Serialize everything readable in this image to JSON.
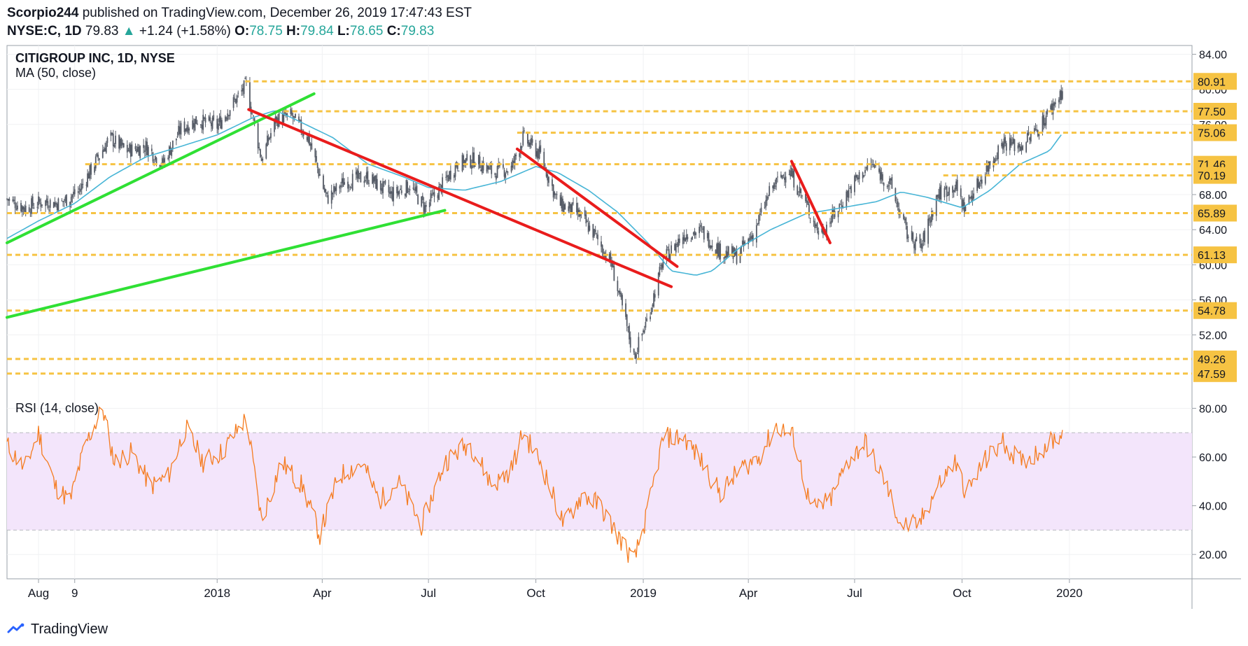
{
  "header": {
    "publisher": "Scorpio244",
    "published_text": "published on TradingView.com, December 26, 2019 17:47:43 EST",
    "symbol": "NYSE:C, 1D",
    "last": "79.83",
    "change": "+1.24 (+1.58%)",
    "o_label": "O:",
    "o_value": "78.75",
    "h_label": "H:",
    "h_value": "79.84",
    "l_label": "L:",
    "l_value": "78.65",
    "c_label": "C:",
    "c_value": "79.83"
  },
  "footer": {
    "brand": "TradingView"
  },
  "colors": {
    "ma": "#47b5d6",
    "support": "#f6c343",
    "trend_green": "#2fe034",
    "trend_red": "#e91c1c",
    "rsi": "#f57c20",
    "rsi_band": "#f3e5fb",
    "candle": "#555b66"
  },
  "chart_data": [
    {
      "type": "line",
      "panel": "price",
      "title": "CITIGROUP INC, 1D, NYSE",
      "indicator_label": "MA (50, close)",
      "y_ticks": [
        "84.00",
        "80.00",
        "76.00",
        "68.00",
        "64.00",
        "60.00",
        "56.00",
        "52.00"
      ],
      "ylim": [
        45.5,
        85.0
      ],
      "x_ticks": [
        "Aug",
        "9",
        "2018",
        "Apr",
        "Jul",
        "Oct",
        "2019",
        "Apr",
        "Jul",
        "Oct",
        "2020"
      ],
      "x_tick_dates": [
        "2017-08-01",
        "2017-09-01",
        "2018-01-01",
        "2018-04-01",
        "2018-07-01",
        "2018-10-01",
        "2019-01-01",
        "2019-04-01",
        "2019-07-01",
        "2019-10-01",
        "2020-01-01"
      ],
      "x_range": [
        "2017-07-05",
        "2020-04-15"
      ],
      "horizontal_levels": [
        {
          "label": "80.91",
          "value": 80.91,
          "start": "2018-01-25"
        },
        {
          "label": "77.50",
          "value": 77.5,
          "start": "2018-02-20"
        },
        {
          "label": "75.06",
          "value": 75.06,
          "start": "2018-09-15"
        },
        {
          "label": "71.46",
          "value": 71.46,
          "start": "2017-09-10"
        },
        {
          "label": "70.19",
          "value": 70.19,
          "start": "2019-09-15"
        },
        {
          "label": "65.89",
          "value": 65.89,
          "start": "2017-07-05"
        },
        {
          "label": "61.13",
          "value": 61.13,
          "start": "2017-07-05"
        },
        {
          "label": "54.78",
          "value": 54.78,
          "start": "2017-07-05"
        },
        {
          "label": "49.26",
          "value": 49.26,
          "start": "2017-07-05"
        },
        {
          "label": "47.59",
          "value": 47.59,
          "start": "2017-07-05"
        }
      ],
      "trend_lines": [
        {
          "color": "green",
          "points": [
            [
              "2017-07-05",
              62.5
            ],
            [
              "2018-03-25",
              79.5
            ]
          ]
        },
        {
          "color": "green",
          "points": [
            [
              "2017-07-05",
              54.0
            ],
            [
              "2018-07-15",
              66.2
            ]
          ]
        },
        {
          "color": "red",
          "points": [
            [
              "2018-01-28",
              77.7
            ],
            [
              "2019-01-25",
              57.5
            ]
          ]
        },
        {
          "color": "red",
          "points": [
            [
              "2018-09-15",
              73.2
            ],
            [
              "2019-01-30",
              59.8
            ]
          ]
        },
        {
          "color": "red",
          "points": [
            [
              "2019-05-08",
              71.8
            ],
            [
              "2019-06-10",
              62.5
            ]
          ]
        }
      ],
      "close_series": [
        [
          "2017-07-05",
          67.5
        ],
        [
          "2017-07-20",
          66.5
        ],
        [
          "2017-08-05",
          67.2
        ],
        [
          "2017-08-20",
          67.0
        ],
        [
          "2017-09-05",
          68.5
        ],
        [
          "2017-09-20",
          72.0
        ],
        [
          "2017-10-01",
          74.5
        ],
        [
          "2017-10-15",
          73.0
        ],
        [
          "2017-11-01",
          73.5
        ],
        [
          "2017-11-15",
          71.5
        ],
        [
          "2017-12-01",
          75.5
        ],
        [
          "2017-12-15",
          76.5
        ],
        [
          "2018-01-01",
          75.8
        ],
        [
          "2018-01-15",
          78.5
        ],
        [
          "2018-01-26",
          80.5
        ],
        [
          "2018-02-08",
          72.0
        ],
        [
          "2018-02-20",
          76.5
        ],
        [
          "2018-03-05",
          77.0
        ],
        [
          "2018-03-20",
          74.5
        ],
        [
          "2018-04-05",
          67.5
        ],
        [
          "2018-04-20",
          69.5
        ],
        [
          "2018-05-10",
          70.0
        ],
        [
          "2018-05-30",
          68.0
        ],
        [
          "2018-06-15",
          69.0
        ],
        [
          "2018-06-28",
          66.5
        ],
        [
          "2018-07-10",
          68.5
        ],
        [
          "2018-07-25",
          71.5
        ],
        [
          "2018-08-10",
          72.0
        ],
        [
          "2018-08-25",
          70.5
        ],
        [
          "2018-09-10",
          71.0
        ],
        [
          "2018-09-20",
          74.5
        ],
        [
          "2018-10-05",
          72.5
        ],
        [
          "2018-10-20",
          67.0
        ],
        [
          "2018-11-05",
          66.0
        ],
        [
          "2018-11-20",
          63.5
        ],
        [
          "2018-12-05",
          60.0
        ],
        [
          "2018-12-15",
          54.5
        ],
        [
          "2018-12-24",
          49.5
        ],
        [
          "2019-01-05",
          54.0
        ],
        [
          "2019-01-18",
          60.5
        ],
        [
          "2019-02-05",
          63.5
        ],
        [
          "2019-02-20",
          63.8
        ],
        [
          "2019-03-08",
          61.5
        ],
        [
          "2019-03-22",
          61.0
        ],
        [
          "2019-04-05",
          63.5
        ],
        [
          "2019-04-20",
          68.5
        ],
        [
          "2019-05-05",
          71.0
        ],
        [
          "2019-05-20",
          67.0
        ],
        [
          "2019-06-01",
          63.5
        ],
        [
          "2019-06-15",
          66.0
        ],
        [
          "2019-07-01",
          69.5
        ],
        [
          "2019-07-15",
          71.5
        ],
        [
          "2019-08-01",
          69.0
        ],
        [
          "2019-08-15",
          63.5
        ],
        [
          "2019-08-27",
          62.0
        ],
        [
          "2019-09-10",
          68.0
        ],
        [
          "2019-09-25",
          69.0
        ],
        [
          "2019-10-03",
          66.5
        ],
        [
          "2019-10-20",
          70.5
        ],
        [
          "2019-11-05",
          74.0
        ],
        [
          "2019-11-20",
          73.5
        ],
        [
          "2019-12-05",
          75.5
        ],
        [
          "2019-12-26",
          79.83
        ]
      ],
      "ma_series": [
        [
          "2017-07-05",
          63.0
        ],
        [
          "2017-08-01",
          65.0
        ],
        [
          "2017-09-01",
          67.0
        ],
        [
          "2017-10-01",
          70.0
        ],
        [
          "2017-11-01",
          72.3
        ],
        [
          "2017-12-01",
          73.5
        ],
        [
          "2018-01-01",
          74.8
        ],
        [
          "2018-02-01",
          76.8
        ],
        [
          "2018-02-20",
          77.6
        ],
        [
          "2018-03-10",
          76.5
        ],
        [
          "2018-04-10",
          74.5
        ],
        [
          "2018-05-10",
          71.5
        ],
        [
          "2018-06-10",
          70.0
        ],
        [
          "2018-07-01",
          68.8
        ],
        [
          "2018-08-01",
          68.5
        ],
        [
          "2018-09-01",
          69.5
        ],
        [
          "2018-10-01",
          71.2
        ],
        [
          "2018-10-20",
          70.5
        ],
        [
          "2018-11-15",
          68.5
        ],
        [
          "2018-12-10",
          66.0
        ],
        [
          "2019-01-05",
          62.5
        ],
        [
          "2019-01-25",
          59.3
        ],
        [
          "2019-02-15",
          58.8
        ],
        [
          "2019-03-01",
          59.3
        ],
        [
          "2019-03-25",
          62.0
        ],
        [
          "2019-04-20",
          64.0
        ],
        [
          "2019-05-20",
          65.8
        ],
        [
          "2019-06-20",
          66.5
        ],
        [
          "2019-07-20",
          67.2
        ],
        [
          "2019-08-10",
          68.3
        ],
        [
          "2019-09-01",
          67.7
        ],
        [
          "2019-10-01",
          66.5
        ],
        [
          "2019-10-25",
          68.5
        ],
        [
          "2019-11-20",
          71.5
        ],
        [
          "2019-12-15",
          73.0
        ],
        [
          "2019-12-26",
          75.0
        ]
      ]
    },
    {
      "type": "line",
      "panel": "rsi",
      "indicator_label": "RSI (14, close)",
      "y_ticks": [
        "80.00",
        "60.00",
        "40.00",
        "20.00"
      ],
      "ylim": [
        10,
        85
      ],
      "band": [
        30,
        70
      ],
      "series": [
        [
          "2017-07-05",
          65
        ],
        [
          "2017-07-20",
          55
        ],
        [
          "2017-08-01",
          70
        ],
        [
          "2017-08-15",
          48
        ],
        [
          "2017-08-28",
          42
        ],
        [
          "2017-09-10",
          65
        ],
        [
          "2017-09-25",
          80
        ],
        [
          "2017-10-05",
          58
        ],
        [
          "2017-10-20",
          62
        ],
        [
          "2017-11-05",
          48
        ],
        [
          "2017-11-20",
          52
        ],
        [
          "2017-12-05",
          72
        ],
        [
          "2017-12-20",
          58
        ],
        [
          "2018-01-05",
          62
        ],
        [
          "2018-01-26",
          76
        ],
        [
          "2018-02-08",
          34
        ],
        [
          "2018-02-25",
          58
        ],
        [
          "2018-03-15",
          48
        ],
        [
          "2018-03-30",
          28
        ],
        [
          "2018-04-15",
          52
        ],
        [
          "2018-05-05",
          58
        ],
        [
          "2018-05-20",
          42
        ],
        [
          "2018-06-05",
          50
        ],
        [
          "2018-06-25",
          32
        ],
        [
          "2018-07-15",
          58
        ],
        [
          "2018-08-05",
          66
        ],
        [
          "2018-08-25",
          48
        ],
        [
          "2018-09-10",
          55
        ],
        [
          "2018-09-20",
          70
        ],
        [
          "2018-10-05",
          58
        ],
        [
          "2018-10-25",
          32
        ],
        [
          "2018-11-10",
          45
        ],
        [
          "2018-11-25",
          40
        ],
        [
          "2018-12-10",
          28
        ],
        [
          "2018-12-24",
          17
        ],
        [
          "2019-01-05",
          38
        ],
        [
          "2019-01-18",
          68
        ],
        [
          "2019-02-05",
          68
        ],
        [
          "2019-02-20",
          58
        ],
        [
          "2019-03-08",
          45
        ],
        [
          "2019-03-25",
          55
        ],
        [
          "2019-04-10",
          60
        ],
        [
          "2019-04-25",
          73
        ],
        [
          "2019-05-10",
          68
        ],
        [
          "2019-05-25",
          38
        ],
        [
          "2019-06-10",
          42
        ],
        [
          "2019-06-25",
          58
        ],
        [
          "2019-07-10",
          66
        ],
        [
          "2019-07-25",
          52
        ],
        [
          "2019-08-10",
          32
        ],
        [
          "2019-08-25",
          32
        ],
        [
          "2019-09-10",
          48
        ],
        [
          "2019-09-25",
          58
        ],
        [
          "2019-10-05",
          45
        ],
        [
          "2019-10-20",
          58
        ],
        [
          "2019-11-05",
          66
        ],
        [
          "2019-11-20",
          58
        ],
        [
          "2019-12-05",
          62
        ],
        [
          "2019-12-26",
          70
        ]
      ]
    }
  ]
}
